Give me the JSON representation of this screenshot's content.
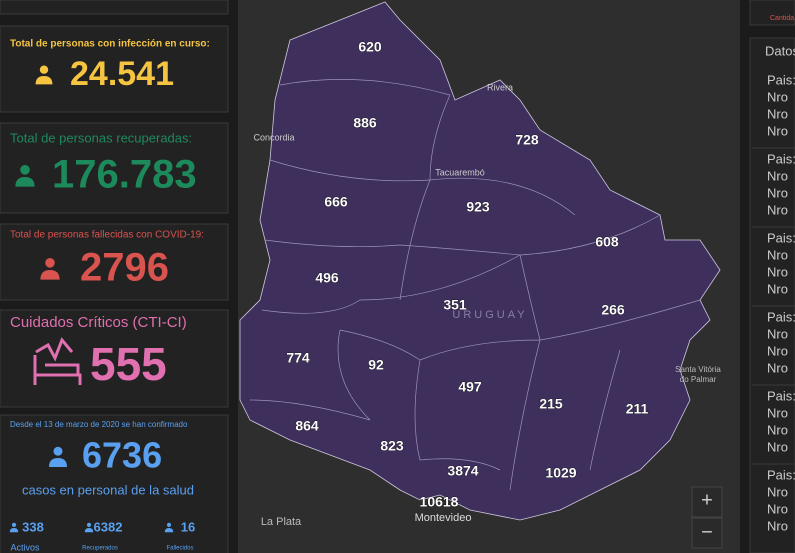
{
  "top_right": {
    "caption": "Cantida"
  },
  "cards": [
    {
      "title": "Total de personas con infección en curso:",
      "value": "24.541"
    },
    {
      "title": "Total de personas recuperadas:",
      "value": "176.783"
    },
    {
      "title": "Total de personas fallecidas con COVID-19:",
      "value": "2796"
    },
    {
      "title": "Cuidados Críticos (CTI-CI)",
      "value": "555"
    },
    {
      "title": "Desde el 13 de marzo de 2020 se han confirmado",
      "value": "6736",
      "subtitle": "casos en personal de la salud",
      "stats": [
        {
          "value": "338",
          "label": "Activos"
        },
        {
          "value": "6382",
          "label": "Recuperados"
        },
        {
          "value": "16",
          "label": "Fallecidos"
        }
      ]
    }
  ],
  "map": {
    "departments": [
      {
        "label": "620"
      },
      {
        "label": "886"
      },
      {
        "label": "728"
      },
      {
        "label": "666"
      },
      {
        "label": "923"
      },
      {
        "label": "608"
      },
      {
        "label": "496"
      },
      {
        "label": "351"
      },
      {
        "label": "266"
      },
      {
        "label": "774"
      },
      {
        "label": "92"
      },
      {
        "label": "497"
      },
      {
        "label": "215"
      },
      {
        "label": "211"
      },
      {
        "label": "864"
      },
      {
        "label": "823"
      },
      {
        "label": "3874"
      },
      {
        "label": "1029"
      },
      {
        "label": "10618"
      }
    ],
    "places": [
      "Concordia",
      "Rivera",
      "Tacuarembó",
      "URUGUAY",
      "Santa Vitória do Palmar",
      "La Plata",
      "Montevideo"
    ],
    "zoom": [
      "+",
      "−"
    ]
  },
  "right_panel": {
    "heading": "Datos",
    "groups": [
      {
        "country": "Pais:",
        "lines": [
          "Nro",
          "Nro",
          "Nro"
        ]
      },
      {
        "country": "Pais:",
        "lines": [
          "Nro",
          "Nro",
          "Nro"
        ]
      },
      {
        "country": "Pais:",
        "lines": [
          "Nro",
          "Nro",
          "Nro"
        ]
      },
      {
        "country": "Pais:",
        "lines": [
          "Nro",
          "Nro",
          "Nro"
        ]
      },
      {
        "country": "Pais:",
        "lines": [
          "Nro",
          "Nro",
          "Nro"
        ]
      },
      {
        "country": "Pais:",
        "lines": [
          "Nro",
          "Nro",
          "Nro"
        ]
      }
    ]
  }
}
